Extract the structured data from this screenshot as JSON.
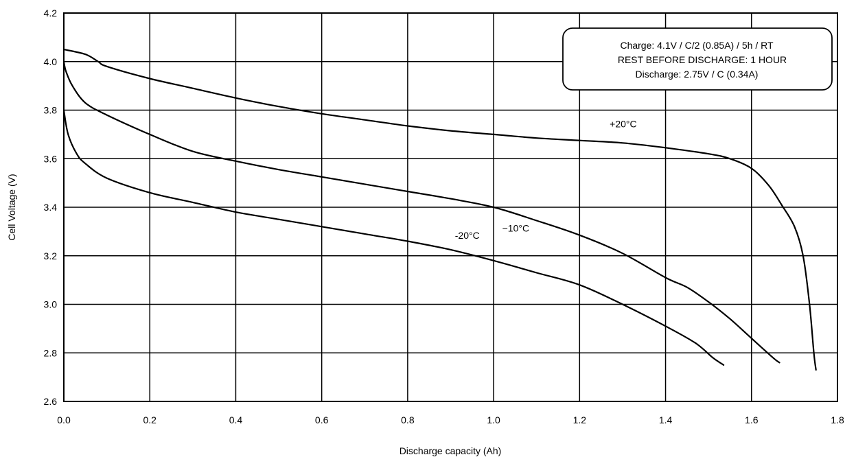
{
  "chart_data": {
    "type": "line",
    "title": "",
    "xlabel": "Discharge capacity (Ah)",
    "ylabel": "Cell Voltage (V)",
    "xlim": [
      0,
      1.8
    ],
    "ylim": [
      2.6,
      4.2
    ],
    "x_ticks": [
      "0.0",
      "0.2",
      "0.4",
      "0.6",
      "0.8",
      "1.0",
      "1.2",
      "1.4",
      "1.6",
      "1.8"
    ],
    "y_ticks": [
      "2.6",
      "2.8",
      "3.0",
      "3.2",
      "3.4",
      "3.6",
      "3.8",
      "4.0",
      "4.2"
    ],
    "grid": true,
    "annotation_lines": [
      "Charge: 4.1V / C/2 (0.85A) / 5h / RT",
      "REST BEFORE DISCHARGE: 1 HOUR",
      "Discharge: 2.75V / C (0.34A)"
    ],
    "series": [
      {
        "name": "+20°C",
        "points": [
          [
            0.0,
            4.05
          ],
          [
            0.05,
            4.03
          ],
          [
            0.08,
            4.0
          ],
          [
            0.1,
            3.98
          ],
          [
            0.2,
            3.93
          ],
          [
            0.3,
            3.89
          ],
          [
            0.4,
            3.85
          ],
          [
            0.5,
            3.815
          ],
          [
            0.6,
            3.785
          ],
          [
            0.7,
            3.76
          ],
          [
            0.8,
            3.735
          ],
          [
            0.9,
            3.715
          ],
          [
            1.0,
            3.7
          ],
          [
            1.1,
            3.685
          ],
          [
            1.2,
            3.675
          ],
          [
            1.3,
            3.665
          ],
          [
            1.4,
            3.645
          ],
          [
            1.5,
            3.62
          ],
          [
            1.55,
            3.6
          ],
          [
            1.6,
            3.56
          ],
          [
            1.64,
            3.49
          ],
          [
            1.67,
            3.41
          ],
          [
            1.7,
            3.32
          ],
          [
            1.72,
            3.2
          ],
          [
            1.735,
            3.0
          ],
          [
            1.745,
            2.8
          ],
          [
            1.75,
            2.73
          ]
        ]
      },
      {
        "name": "−10°C",
        "points": [
          [
            0.0,
            4.0
          ],
          [
            0.005,
            3.96
          ],
          [
            0.02,
            3.9
          ],
          [
            0.05,
            3.83
          ],
          [
            0.1,
            3.78
          ],
          [
            0.2,
            3.7
          ],
          [
            0.3,
            3.63
          ],
          [
            0.4,
            3.59
          ],
          [
            0.5,
            3.555
          ],
          [
            0.6,
            3.525
          ],
          [
            0.7,
            3.495
          ],
          [
            0.8,
            3.465
          ],
          [
            0.9,
            3.435
          ],
          [
            1.0,
            3.4
          ],
          [
            1.1,
            3.345
          ],
          [
            1.2,
            3.285
          ],
          [
            1.3,
            3.21
          ],
          [
            1.4,
            3.11
          ],
          [
            1.45,
            3.07
          ],
          [
            1.5,
            3.01
          ],
          [
            1.55,
            2.94
          ],
          [
            1.6,
            2.86
          ],
          [
            1.65,
            2.78
          ],
          [
            1.665,
            2.76
          ]
        ]
      },
      {
        "name": "-20°C",
        "points": [
          [
            0.0,
            3.8
          ],
          [
            0.01,
            3.7
          ],
          [
            0.03,
            3.62
          ],
          [
            0.05,
            3.58
          ],
          [
            0.1,
            3.52
          ],
          [
            0.2,
            3.46
          ],
          [
            0.3,
            3.42
          ],
          [
            0.4,
            3.38
          ],
          [
            0.5,
            3.35
          ],
          [
            0.6,
            3.32
          ],
          [
            0.7,
            3.29
          ],
          [
            0.8,
            3.26
          ],
          [
            0.9,
            3.225
          ],
          [
            1.0,
            3.18
          ],
          [
            1.1,
            3.13
          ],
          [
            1.2,
            3.08
          ],
          [
            1.3,
            3.0
          ],
          [
            1.4,
            2.91
          ],
          [
            1.47,
            2.84
          ],
          [
            1.51,
            2.78
          ],
          [
            1.535,
            2.75
          ]
        ]
      }
    ],
    "series_label_positions": [
      [
        1.27,
        3.73
      ],
      [
        1.02,
        3.3
      ],
      [
        0.91,
        3.27
      ]
    ]
  }
}
